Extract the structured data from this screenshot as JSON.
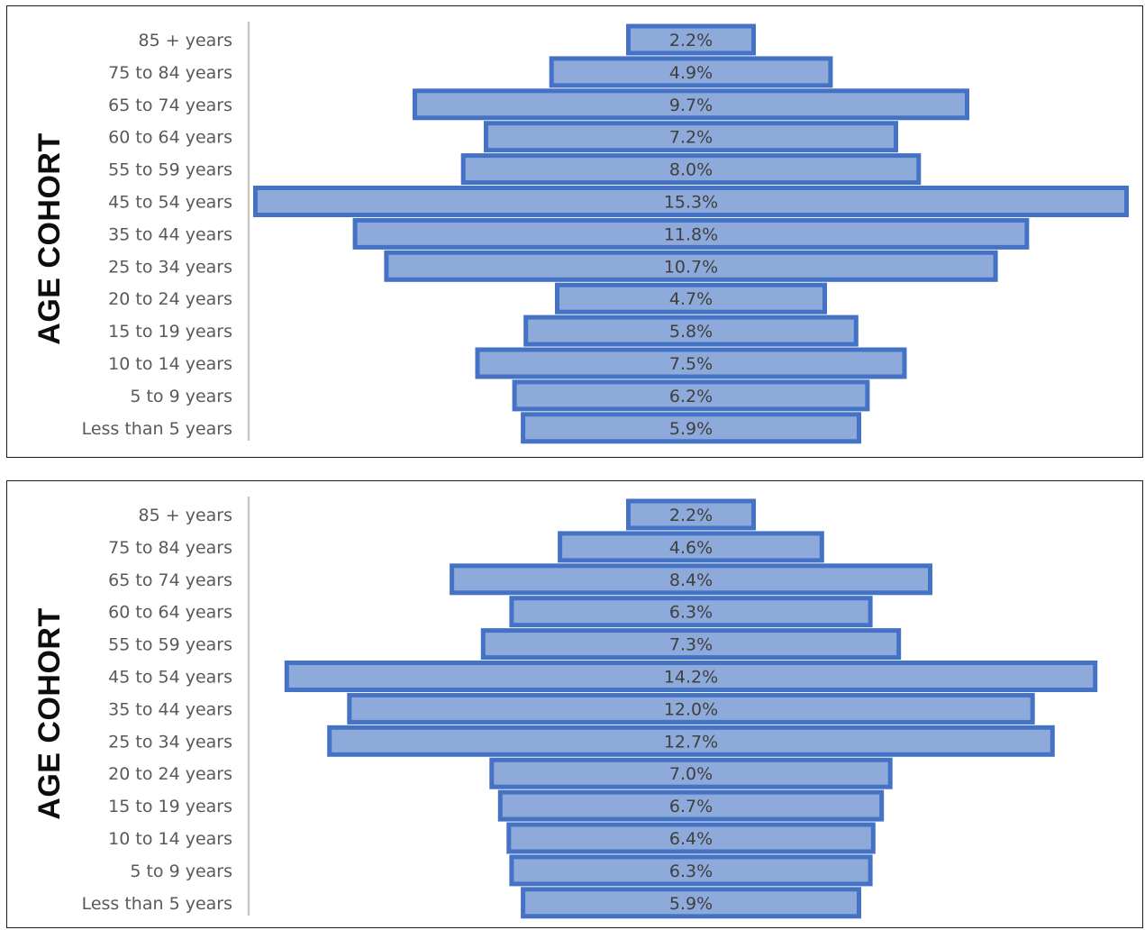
{
  "chart_data": [
    {
      "type": "bar",
      "orientation": "horizontal-centered",
      "ylabel": "AGE COHORT",
      "categories": [
        "85 + years",
        "75 to 84 years",
        "65 to 74 years",
        "60 to 64 years",
        "55 to 59 years",
        "45 to 54 years",
        "35 to 44 years",
        "25 to 34 years",
        "20 to 24 years",
        "15 to 19 years",
        "10 to 14 years",
        "5 to 9 years",
        "Less than 5 years"
      ],
      "values": [
        2.2,
        4.9,
        9.7,
        7.2,
        8.0,
        15.3,
        11.8,
        10.7,
        4.7,
        5.8,
        7.5,
        6.2,
        5.9
      ],
      "data_labels": [
        "2.2%",
        "4.9%",
        "9.7%",
        "7.2%",
        "8.0%",
        "15.3%",
        "11.8%",
        "10.7%",
        "4.7%",
        "5.8%",
        "7.5%",
        "6.2%",
        "5.9%"
      ],
      "value_unit": "%",
      "bar_fill": "#8eaadb",
      "bar_stroke": "#4472c4"
    },
    {
      "type": "bar",
      "orientation": "horizontal-centered",
      "ylabel": "AGE COHORT",
      "categories": [
        "85 + years",
        "75 to 84 years",
        "65 to 74 years",
        "60 to 64 years",
        "55 to 59 years",
        "45 to 54 years",
        "35 to 44 years",
        "25 to 34 years",
        "20 to 24 years",
        "15 to 19 years",
        "10 to 14 years",
        "5 to 9 years",
        "Less than 5 years"
      ],
      "values": [
        2.2,
        4.6,
        8.4,
        6.3,
        7.3,
        14.2,
        12.0,
        12.7,
        7.0,
        6.7,
        6.4,
        6.3,
        5.9
      ],
      "data_labels": [
        "2.2%",
        "4.6%",
        "8.4%",
        "6.3%",
        "7.3%",
        "14.2%",
        "12.0%",
        "12.7%",
        "7.0%",
        "6.7%",
        "6.4%",
        "6.3%",
        "5.9%"
      ],
      "value_unit": "%",
      "bar_fill": "#8eaadb",
      "bar_stroke": "#4472c4"
    }
  ]
}
